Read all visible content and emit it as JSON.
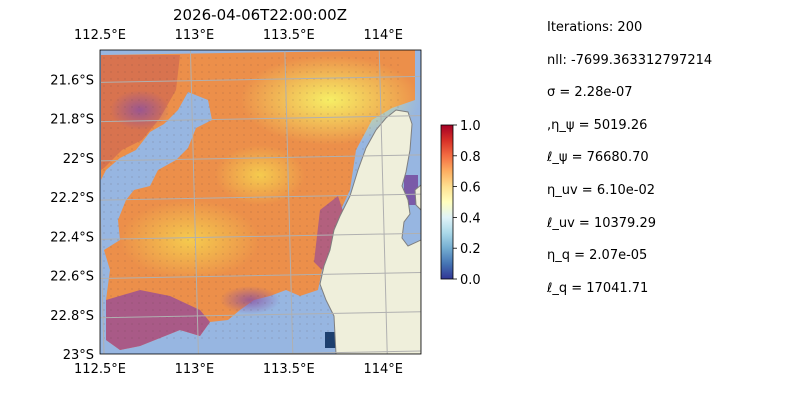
{
  "chart_data": {
    "type": "heatmap",
    "title": "2026-04-06T22:00:00Z",
    "x_ticks_top": [
      "112.5°E",
      "113°E",
      "113.5°E",
      "114°E"
    ],
    "x_ticks_bottom": [
      "112.5°E",
      "113°E",
      "113.5°E",
      "114°E"
    ],
    "x_tick_values": [
      112.5,
      113.0,
      113.5,
      114.0
    ],
    "y_ticks": [
      "21.6°S",
      "21.8°S",
      "22°S",
      "22.2°S",
      "22.4°S",
      "22.6°S",
      "22.8°S",
      "23°S"
    ],
    "y_tick_values": [
      -21.6,
      -21.8,
      -22.0,
      -22.2,
      -22.4,
      -22.6,
      -22.8,
      -23.0
    ],
    "xlim": [
      112.5,
      114.2
    ],
    "ylim": [
      -23.0,
      -21.45
    ],
    "grid": true,
    "colorbar": {
      "ticks": [
        "0.0",
        "0.2",
        "0.4",
        "0.6",
        "0.8",
        "1.0"
      ],
      "tick_values": [
        0.0,
        0.2,
        0.4,
        0.6,
        0.8,
        1.0
      ],
      "range": [
        0,
        1
      ],
      "colormap": "RdYlBu_r"
    },
    "colors": {
      "ocean": "#97b6e1",
      "land": "#efefdb",
      "coast": "#7f7f7f",
      "grid": "#b0b0b0"
    }
  },
  "params": [
    "Iterations: 200",
    "nll: -7699.363312797214",
    "σ = 2.28e-07",
    ",η_ψ = 5019.26",
    "ℓ_ψ = 76680.70",
    "η_uv = 6.10e-02",
    "ℓ_uv = 10379.29",
    "η_q = 2.07e-05",
    "ℓ_q = 17041.71"
  ]
}
